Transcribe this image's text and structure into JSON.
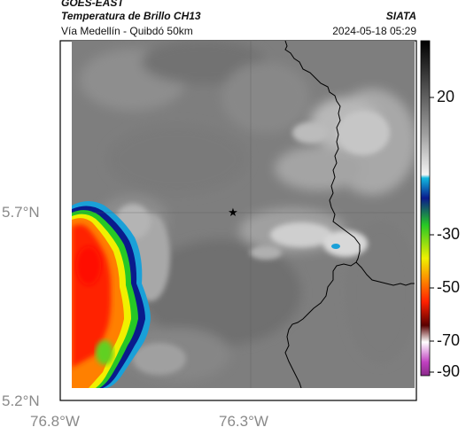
{
  "header": {
    "satellite": "GOES-EAST",
    "product": "Temperatura de Brillo CH13",
    "region": "Vía Medellín - Quibdó 50km",
    "agency": "SIATA",
    "timestamp": "2024-05-18 05:29"
  },
  "axes": {
    "lat_ticks": [
      "5.7°N",
      "5.2°N"
    ],
    "lon_ticks": [
      "76.8°W",
      "76.3°W"
    ]
  },
  "colorbar": {
    "labels": [
      "20",
      "-30",
      "-50",
      "-70",
      "-90"
    ],
    "colors": {
      "cold_cyan": "#1aa0d8",
      "blue": "#0a1a8c",
      "green": "#26c826",
      "yellow": "#f0f000",
      "orange": "#ff8000",
      "red": "#ff2000",
      "dark_red": "#5a0000",
      "magenta": "#c040c0"
    }
  },
  "map": {
    "marker_icon": "star-icon",
    "borders": "department-boundary-lines"
  }
}
